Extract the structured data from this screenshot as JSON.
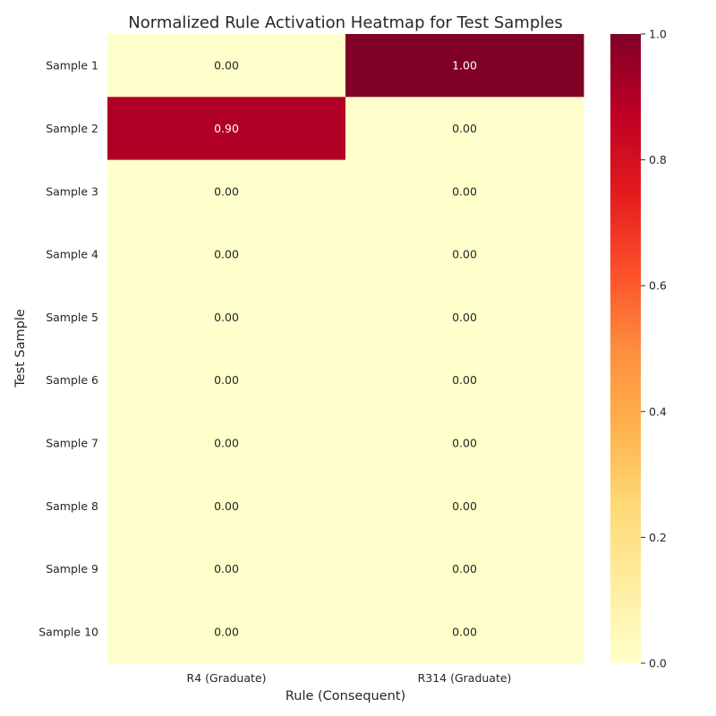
{
  "chart_data": {
    "type": "heatmap",
    "title": "Normalized Rule Activation Heatmap for Test Samples",
    "xlabel": "Rule (Consequent)",
    "ylabel": "Test Sample",
    "columns": [
      "R4 (Graduate)",
      "R314 (Graduate)"
    ],
    "rows": [
      "Sample 1",
      "Sample 2",
      "Sample 3",
      "Sample 4",
      "Sample 5",
      "Sample 6",
      "Sample 7",
      "Sample 8",
      "Sample 9",
      "Sample 10"
    ],
    "values": [
      [
        0.0,
        1.0
      ],
      [
        0.9,
        0.0
      ],
      [
        0.0,
        0.0
      ],
      [
        0.0,
        0.0
      ],
      [
        0.0,
        0.0
      ],
      [
        0.0,
        0.0
      ],
      [
        0.0,
        0.0
      ],
      [
        0.0,
        0.0
      ],
      [
        0.0,
        0.0
      ],
      [
        0.0,
        0.0
      ]
    ],
    "value_format": "0.00",
    "colorbar": {
      "colormap": "YlOrRd",
      "range": [
        0.0,
        1.0
      ],
      "ticks": [
        "0.0",
        "0.2",
        "0.4",
        "0.6",
        "0.8",
        "1.0"
      ]
    }
  }
}
